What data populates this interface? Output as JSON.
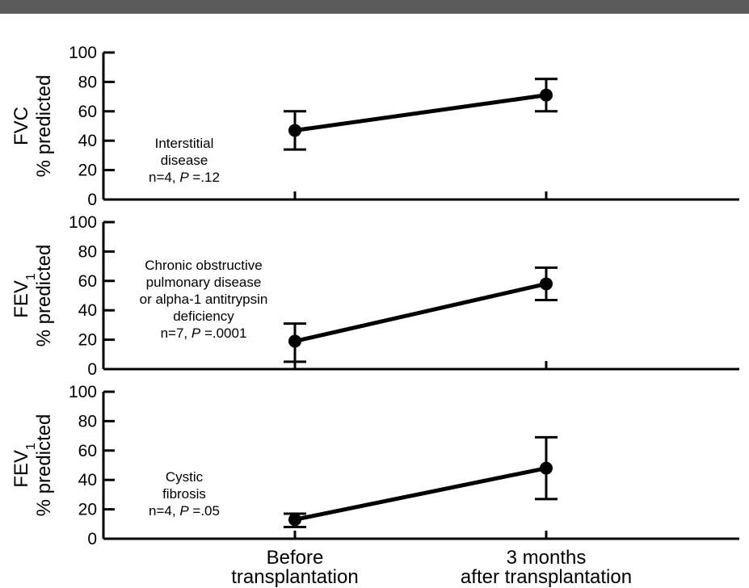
{
  "colors": {
    "ink": "#000000",
    "rule": "#5a5a5a",
    "background": "#ffffff"
  },
  "chart_data": [
    {
      "type": "line",
      "ylabel": [
        "FVC",
        "% predicted"
      ],
      "ylim": [
        0,
        100
      ],
      "yticks": [
        "0",
        "20",
        "40",
        "60",
        "80",
        "100"
      ],
      "x": [
        "Before transplantation",
        "3 months after transplantation"
      ],
      "values": [
        47,
        71
      ],
      "error_low": [
        34,
        60
      ],
      "error_high": [
        60,
        82
      ],
      "annotation": [
        "Interstitial",
        "disease",
        "n=4, P =.12"
      ]
    },
    {
      "type": "line",
      "ylabel": [
        "FEV1",
        "% predicted"
      ],
      "ylim": [
        0,
        100
      ],
      "yticks": [
        "0",
        "20",
        "40",
        "60",
        "80",
        "100"
      ],
      "x": [
        "Before transplantation",
        "3 months after transplantation"
      ],
      "values": [
        19,
        58
      ],
      "error_low": [
        5,
        47
      ],
      "error_high": [
        31,
        69
      ],
      "annotation": [
        "Chronic obstructive",
        "pulmonary disease",
        "or alpha-1 antitrypsin",
        "deficiency",
        "n=7, P =.0001"
      ]
    },
    {
      "type": "line",
      "ylabel": [
        "FEV1",
        "% predicted"
      ],
      "ylim": [
        0,
        100
      ],
      "yticks": [
        "0",
        "20",
        "40",
        "60",
        "80",
        "100"
      ],
      "x": [
        "Before transplantation",
        "3 months after transplantation"
      ],
      "values": [
        13,
        48
      ],
      "error_low": [
        8,
        27
      ],
      "error_high": [
        17,
        69
      ],
      "annotation": [
        "Cystic",
        "fibrosis",
        "n=4, P =.05"
      ]
    }
  ],
  "x_axis_labels": [
    [
      "Before",
      "transplantation"
    ],
    [
      "3 months",
      "after transplantation"
    ]
  ]
}
